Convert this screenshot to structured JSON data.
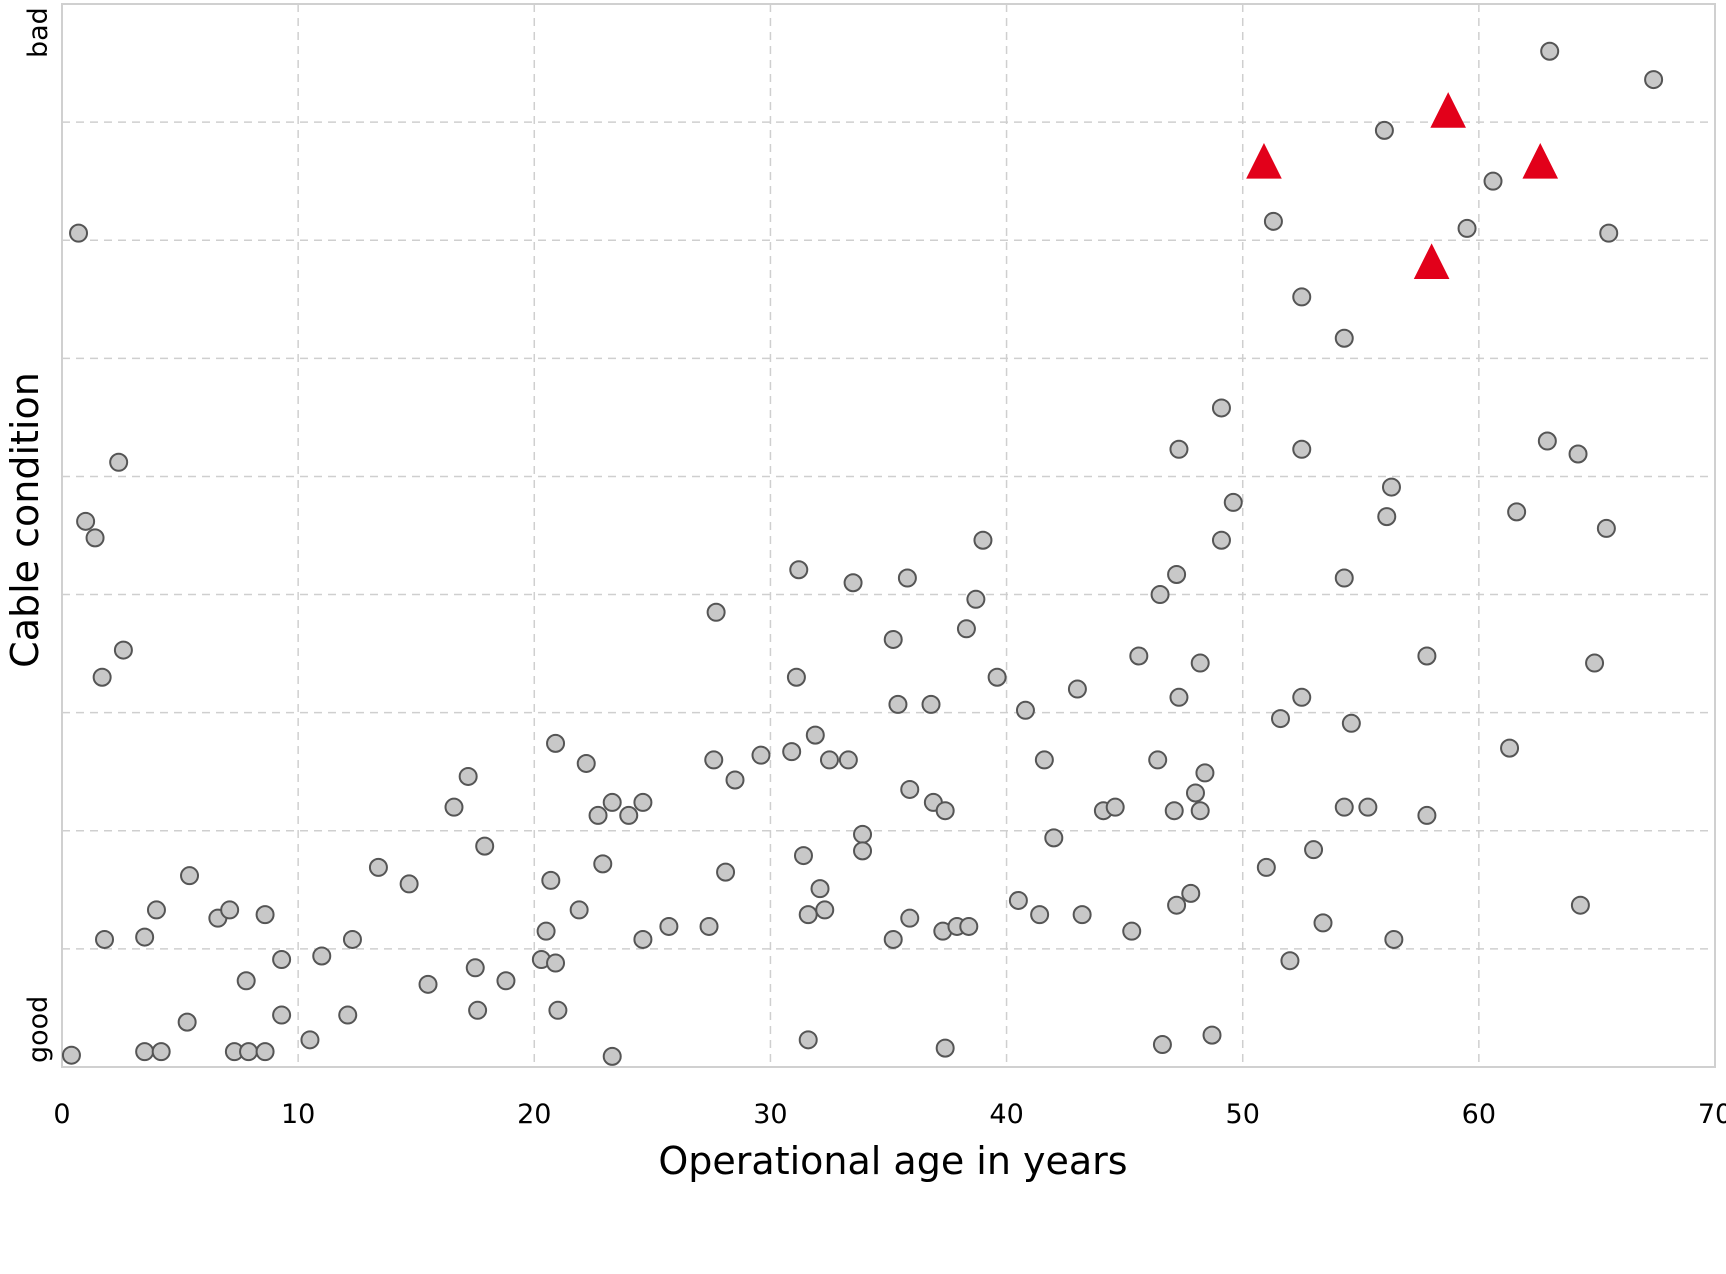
{
  "chart_data": {
    "type": "scatter",
    "title": "",
    "xlabel": "Operational age in years",
    "ylabel": "Cable condition",
    "xlim": [
      0,
      70
    ],
    "ylim": [
      0,
      9
    ],
    "x_ticks": [
      "0",
      "10",
      "20",
      "30",
      "40",
      "50",
      "60",
      "70"
    ],
    "y_ticks": [],
    "y_low_label": "good",
    "y_high_label": "bad",
    "grid": true,
    "legend": "none",
    "series": [
      {
        "marker": "circle",
        "color": "#c8c8c8",
        "edge_color": "#555555",
        "points": [
          [
            0.4,
            0.1
          ],
          [
            0.7,
            7.06
          ],
          [
            1.0,
            4.62
          ],
          [
            1.4,
            4.48
          ],
          [
            2.4,
            5.12
          ],
          [
            2.6,
            3.53
          ],
          [
            1.7,
            3.3
          ],
          [
            1.8,
            1.08
          ],
          [
            3.5,
            1.1
          ],
          [
            4.0,
            1.33
          ],
          [
            3.5,
            0.13
          ],
          [
            4.2,
            0.13
          ],
          [
            5.4,
            1.62
          ],
          [
            6.6,
            1.26
          ],
          [
            7.1,
            1.33
          ],
          [
            8.6,
            1.29
          ],
          [
            5.3,
            0.38
          ],
          [
            7.3,
            0.13
          ],
          [
            7.9,
            0.13
          ],
          [
            8.6,
            0.13
          ],
          [
            7.8,
            0.73
          ],
          [
            9.3,
            0.91
          ],
          [
            9.3,
            0.44
          ],
          [
            10.5,
            0.23
          ],
          [
            11.0,
            0.94
          ],
          [
            12.1,
            0.44
          ],
          [
            12.3,
            1.08
          ],
          [
            13.4,
            1.69
          ],
          [
            14.7,
            1.55
          ],
          [
            15.5,
            0.7
          ],
          [
            16.6,
            2.2
          ],
          [
            17.2,
            2.46
          ],
          [
            17.9,
            1.87
          ],
          [
            17.5,
            0.84
          ],
          [
            17.6,
            0.48
          ],
          [
            18.8,
            0.73
          ],
          [
            20.3,
            0.91
          ],
          [
            20.5,
            1.15
          ],
          [
            20.9,
            0.88
          ],
          [
            21.0,
            0.48
          ],
          [
            20.7,
            1.58
          ],
          [
            20.9,
            2.74
          ],
          [
            22.2,
            2.57
          ],
          [
            21.9,
            1.33
          ],
          [
            22.7,
            2.13
          ],
          [
            22.9,
            1.72
          ],
          [
            23.3,
            2.24
          ],
          [
            24.0,
            2.13
          ],
          [
            24.6,
            2.24
          ],
          [
            24.6,
            1.08
          ],
          [
            23.3,
            0.09
          ],
          [
            25.7,
            1.19
          ],
          [
            27.4,
            1.19
          ],
          [
            27.6,
            2.6
          ],
          [
            27.7,
            3.85
          ],
          [
            28.1,
            1.65
          ],
          [
            28.5,
            2.43
          ],
          [
            29.6,
            2.64
          ],
          [
            30.9,
            2.67
          ],
          [
            31.1,
            3.3
          ],
          [
            31.2,
            4.21
          ],
          [
            31.4,
            1.79
          ],
          [
            31.6,
            1.29
          ],
          [
            31.6,
            0.23
          ],
          [
            31.9,
            2.81
          ],
          [
            32.1,
            1.51
          ],
          [
            32.3,
            1.33
          ],
          [
            32.5,
            2.6
          ],
          [
            33.3,
            2.6
          ],
          [
            33.5,
            4.1
          ],
          [
            33.9,
            1.97
          ],
          [
            33.9,
            1.83
          ],
          [
            35.2,
            3.62
          ],
          [
            35.2,
            1.08
          ],
          [
            35.4,
            3.07
          ],
          [
            35.8,
            4.14
          ],
          [
            35.9,
            2.35
          ],
          [
            35.9,
            1.26
          ],
          [
            36.8,
            3.07
          ],
          [
            36.9,
            2.24
          ],
          [
            37.3,
            1.15
          ],
          [
            37.4,
            2.17
          ],
          [
            37.4,
            0.16
          ],
          [
            37.9,
            1.19
          ],
          [
            38.3,
            3.71
          ],
          [
            38.4,
            1.19
          ],
          [
            38.7,
            3.96
          ],
          [
            39.0,
            4.46
          ],
          [
            39.6,
            3.3
          ],
          [
            40.5,
            1.41
          ],
          [
            40.8,
            3.02
          ],
          [
            41.4,
            1.29
          ],
          [
            41.6,
            2.6
          ],
          [
            42.0,
            1.94
          ],
          [
            43.0,
            3.2
          ],
          [
            43.2,
            1.29
          ],
          [
            44.1,
            2.17
          ],
          [
            44.6,
            2.2
          ],
          [
            45.3,
            1.15
          ],
          [
            45.6,
            3.48
          ],
          [
            46.4,
            2.6
          ],
          [
            46.5,
            4.0
          ],
          [
            46.6,
            0.19
          ],
          [
            47.1,
            2.17
          ],
          [
            47.2,
            1.37
          ],
          [
            47.2,
            4.17
          ],
          [
            47.3,
            3.13
          ],
          [
            47.3,
            5.23
          ],
          [
            47.8,
            1.47
          ],
          [
            48.0,
            2.32
          ],
          [
            48.2,
            2.17
          ],
          [
            48.4,
            2.49
          ],
          [
            48.2,
            3.42
          ],
          [
            48.7,
            0.27
          ],
          [
            49.1,
            5.58
          ],
          [
            49.1,
            4.46
          ],
          [
            49.6,
            4.78
          ],
          [
            51.0,
            1.69
          ],
          [
            51.3,
            7.16
          ],
          [
            51.6,
            2.95
          ],
          [
            52.0,
            0.9
          ],
          [
            52.5,
            6.52
          ],
          [
            52.5,
            5.23
          ],
          [
            52.5,
            3.13
          ],
          [
            53.0,
            1.84
          ],
          [
            53.4,
            1.22
          ],
          [
            54.3,
            6.17
          ],
          [
            54.3,
            4.14
          ],
          [
            54.3,
            2.2
          ],
          [
            54.6,
            2.91
          ],
          [
            55.3,
            2.2
          ],
          [
            56.0,
            7.93
          ],
          [
            56.1,
            4.66
          ],
          [
            56.3,
            4.91
          ],
          [
            56.4,
            1.08
          ],
          [
            57.8,
            3.48
          ],
          [
            57.8,
            2.13
          ],
          [
            59.5,
            7.1
          ],
          [
            60.6,
            7.5
          ],
          [
            61.3,
            2.7
          ],
          [
            61.6,
            4.7
          ],
          [
            63.0,
            8.6
          ],
          [
            62.9,
            5.3
          ],
          [
            64.2,
            5.19
          ],
          [
            64.3,
            1.37
          ],
          [
            64.9,
            3.42
          ],
          [
            65.4,
            4.56
          ],
          [
            65.5,
            7.06
          ],
          [
            67.4,
            8.36
          ]
        ]
      },
      {
        "marker": "triangle",
        "color": "#e2001a",
        "edge_color": "#e2001a",
        "points": [
          [
            50.9,
            7.67
          ],
          [
            58.7,
            8.1
          ],
          [
            58.0,
            6.82
          ],
          [
            62.6,
            7.67
          ]
        ]
      }
    ]
  }
}
